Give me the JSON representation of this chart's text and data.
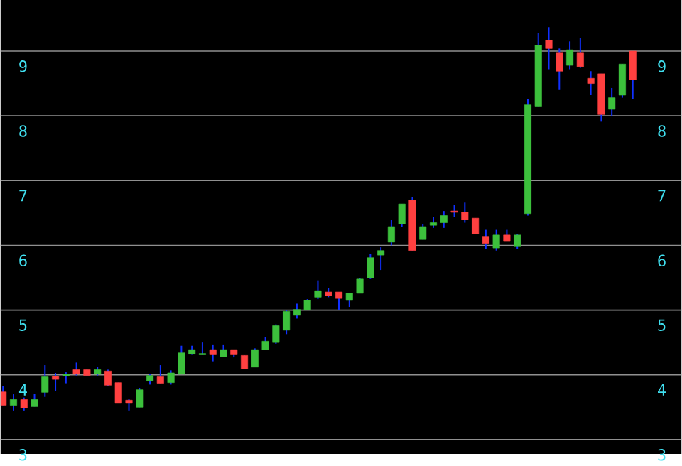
{
  "chart_data": {
    "type": "candlestick",
    "categories": [
      null,
      null,
      null,
      null,
      null,
      null,
      null,
      null,
      null,
      null,
      null,
      null,
      null,
      null,
      null,
      null,
      null,
      null,
      null,
      null,
      null,
      null,
      null,
      null,
      null,
      null,
      null,
      null,
      null,
      null,
      null,
      null,
      null,
      null,
      null,
      null,
      null,
      null,
      null,
      null,
      null,
      null,
      null,
      null,
      null,
      null,
      null,
      null,
      null,
      null,
      null,
      null,
      null,
      null,
      null,
      null,
      null,
      null,
      null,
      null,
      null
    ],
    "ohlc": [
      [
        3.74,
        3.83,
        3.53,
        3.53
      ],
      [
        3.53,
        3.7,
        3.45,
        3.62
      ],
      [
        3.62,
        3.65,
        3.45,
        3.49
      ],
      [
        3.51,
        3.71,
        3.51,
        3.62
      ],
      [
        3.73,
        4.15,
        3.66,
        3.97
      ],
      [
        3.98,
        4.03,
        3.75,
        3.93
      ],
      [
        3.98,
        4.04,
        3.87,
        4.01
      ],
      [
        4.08,
        4.19,
        3.99,
        4.01
      ],
      [
        4.08,
        4.08,
        3.98,
        3.99
      ],
      [
        4.01,
        4.12,
        3.99,
        4.08
      ],
      [
        4.06,
        4.08,
        3.83,
        3.84
      ],
      [
        3.88,
        3.88,
        3.56,
        3.56
      ],
      [
        3.61,
        3.63,
        3.45,
        3.56
      ],
      [
        3.5,
        3.8,
        3.5,
        3.77
      ],
      [
        3.91,
        4.01,
        3.85,
        3.99
      ],
      [
        3.97,
        4.15,
        3.87,
        3.87
      ],
      [
        3.88,
        4.07,
        3.85,
        4.03
      ],
      [
        4.01,
        4.45,
        4.01,
        4.34
      ],
      [
        4.32,
        4.45,
        4.31,
        4.39
      ],
      [
        4.31,
        4.5,
        4.31,
        4.33
      ],
      [
        4.39,
        4.47,
        4.21,
        4.31
      ],
      [
        4.28,
        4.47,
        4.28,
        4.39
      ],
      [
        4.39,
        4.39,
        4.27,
        4.31
      ],
      [
        4.3,
        4.3,
        4.09,
        4.09
      ],
      [
        4.12,
        4.41,
        4.12,
        4.39
      ],
      [
        4.39,
        4.58,
        4.39,
        4.52
      ],
      [
        4.5,
        4.78,
        4.48,
        4.76
      ],
      [
        4.69,
        5.0,
        4.63,
        4.98
      ],
      [
        4.92,
        5.1,
        4.87,
        5.01
      ],
      [
        5.0,
        5.17,
        5.0,
        5.15
      ],
      [
        5.2,
        5.46,
        5.17,
        5.3
      ],
      [
        5.28,
        5.34,
        5.2,
        5.22
      ],
      [
        5.28,
        5.28,
        5.0,
        5.18
      ],
      [
        5.15,
        5.26,
        5.05,
        5.26
      ],
      [
        5.26,
        5.5,
        5.26,
        5.48
      ],
      [
        5.5,
        5.87,
        5.48,
        5.81
      ],
      [
        5.85,
        5.97,
        5.62,
        5.92
      ],
      [
        6.05,
        6.4,
        6.0,
        6.29
      ],
      [
        6.33,
        6.64,
        6.29,
        6.64
      ],
      [
        6.7,
        6.75,
        5.92,
        5.92
      ],
      [
        6.09,
        6.33,
        6.09,
        6.29
      ],
      [
        6.31,
        6.44,
        6.27,
        6.35
      ],
      [
        6.35,
        6.53,
        6.27,
        6.46
      ],
      [
        6.53,
        6.62,
        6.44,
        6.51
      ],
      [
        6.51,
        6.66,
        6.35,
        6.4
      ],
      [
        6.42,
        6.42,
        6.18,
        6.18
      ],
      [
        6.14,
        6.24,
        5.94,
        6.03
      ],
      [
        5.96,
        6.24,
        5.92,
        6.16
      ],
      [
        6.16,
        6.24,
        6.07,
        6.07
      ],
      [
        5.98,
        6.18,
        5.94,
        6.16
      ],
      [
        6.49,
        8.26,
        6.46,
        8.17
      ],
      [
        8.15,
        9.28,
        8.15,
        9.09
      ],
      [
        9.17,
        9.37,
        8.72,
        9.04
      ],
      [
        8.98,
        9.04,
        8.41,
        8.69
      ],
      [
        8.78,
        9.15,
        8.72,
        9.02
      ],
      [
        8.98,
        9.2,
        8.74,
        8.76
      ],
      [
        8.58,
        8.69,
        8.32,
        8.5
      ],
      [
        8.65,
        8.65,
        7.91,
        8.02
      ],
      [
        8.1,
        8.43,
        7.99,
        8.28
      ],
      [
        8.32,
        8.8,
        8.28,
        8.8
      ],
      [
        9.0,
        9.0,
        8.26,
        8.56
      ]
    ],
    "ylim": [
      2.78,
      9.79
    ],
    "yticks": [
      3,
      4,
      5,
      6,
      7,
      8,
      9
    ],
    "y2lim": [
      2.78,
      9.79
    ],
    "y2ticks": [
      3,
      4,
      5,
      6,
      7,
      8,
      9
    ],
    "grid": "y"
  }
}
